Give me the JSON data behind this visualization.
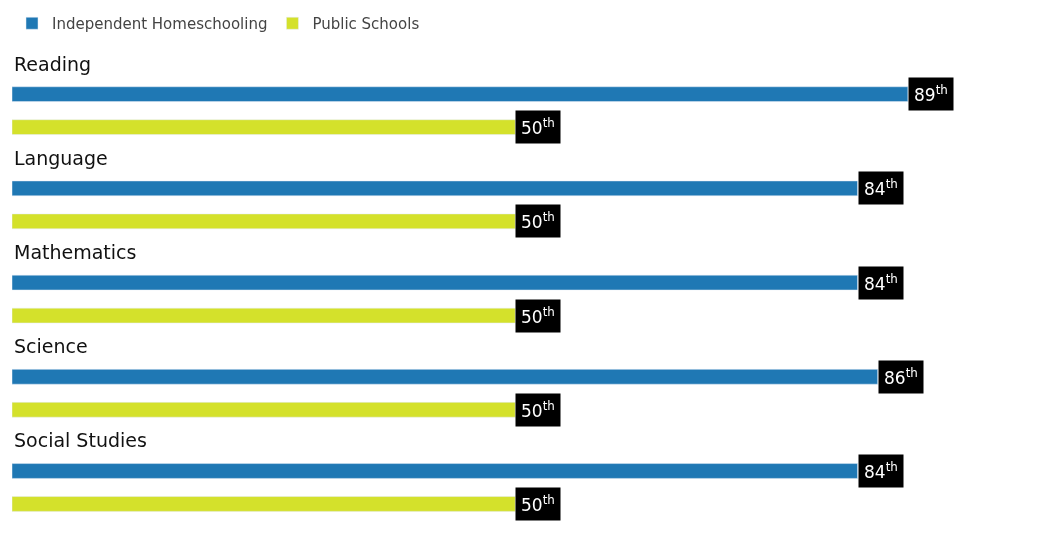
{
  "chart_data": {
    "type": "bar",
    "orientation": "horizontal",
    "categories": [
      "Reading",
      "Language",
      "Mathematics",
      "Science",
      "Social Studies"
    ],
    "series": [
      {
        "name": "Independent Homeschooling",
        "color": "#1f78b4",
        "values": [
          89,
          84,
          84,
          86,
          84
        ],
        "value_labels": [
          "89$^{th}$",
          "84$^{th}$",
          "84$^{th}$",
          "86$^{th}$",
          "84$^{th}$"
        ]
      },
      {
        "name": "Public Schools",
        "color": "#d4e12b",
        "values": [
          50,
          50,
          50,
          50,
          50
        ],
        "value_labels": [
          "50$^{th}$",
          "50$^{th}$",
          "50$^{th}$",
          "50$^{th}$",
          "50$^{th}$"
        ]
      }
    ],
    "legend": "top left",
    "tick_labels": false
  }
}
